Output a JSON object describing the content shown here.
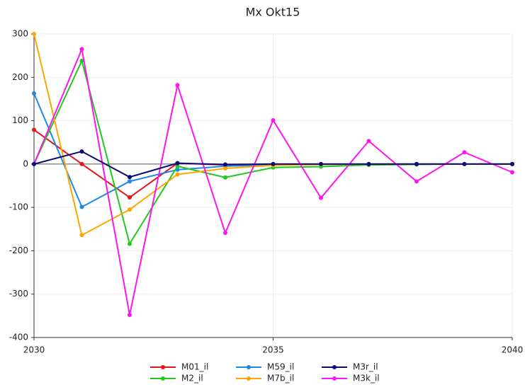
{
  "chart_data": {
    "type": "line",
    "title": "Mx Okt15",
    "x": [
      2030,
      2031,
      2032,
      2033,
      2034,
      2035,
      2036,
      2037,
      2038,
      2039,
      2040
    ],
    "xlim": [
      2030,
      2040
    ],
    "xticks": [
      2030,
      2035,
      2040
    ],
    "ylim": [
      -400,
      300
    ],
    "yticks": [
      -400,
      -300,
      -200,
      -100,
      0,
      100,
      200,
      300
    ],
    "grid": true,
    "series": [
      {
        "name": "M01_il",
        "color": "#e8141b",
        "values": [
          79,
          0,
          -77,
          2,
          -2,
          0,
          0,
          0,
          0,
          0,
          0
        ]
      },
      {
        "name": "M59_il",
        "color": "#1e88e5",
        "values": [
          163,
          -99,
          -40,
          -13,
          -5,
          -2,
          -1,
          0,
          0,
          0,
          0
        ]
      },
      {
        "name": "M3r_il",
        "color": "#0a0a78",
        "values": [
          0,
          29,
          -30,
          2,
          -1,
          0,
          0,
          0,
          0,
          0,
          0
        ]
      },
      {
        "name": "M2_il",
        "color": "#1ec81e",
        "values": [
          0,
          238,
          -184,
          -5,
          -31,
          -8,
          -6,
          -2,
          -1,
          0,
          0
        ]
      },
      {
        "name": "M7b_il",
        "color": "#ffa500",
        "values": [
          300,
          -164,
          -105,
          -24,
          -10,
          -3,
          -1,
          0,
          0,
          0,
          0
        ]
      },
      {
        "name": "M3k_il",
        "color": "#ff14f0",
        "values": [
          0,
          265,
          -348,
          182,
          -159,
          101,
          -78,
          53,
          -40,
          27,
          -19
        ]
      }
    ]
  }
}
